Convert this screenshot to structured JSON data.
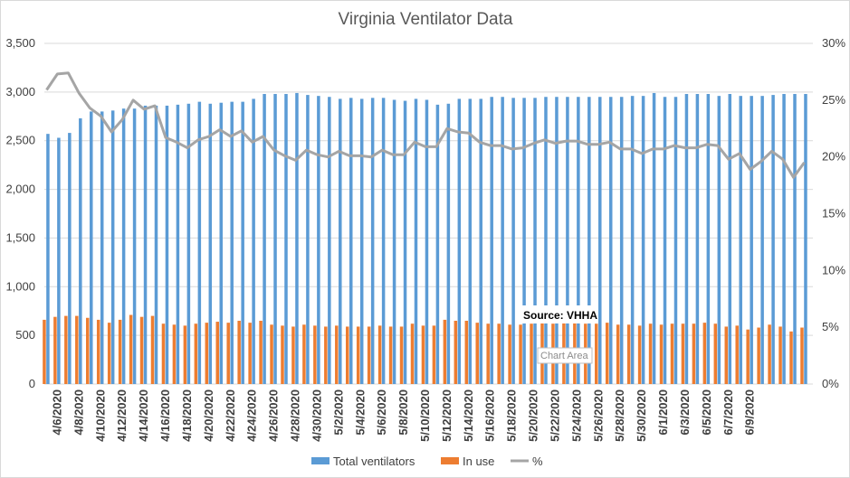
{
  "chart_data": {
    "type": "bar",
    "title": "Virginia Ventilator Data",
    "xlabel": "",
    "ylabel": "",
    "ylim": [
      0,
      3500
    ],
    "y2lim": [
      0,
      30
    ],
    "y_ticks": [
      "0",
      "500",
      "1,000",
      "1,500",
      "2,000",
      "2,500",
      "3,000",
      "3,500"
    ],
    "y2_ticks": [
      "0%",
      "5%",
      "10%",
      "15%",
      "20%",
      "25%",
      "30%"
    ],
    "x_tick_labels": [
      "4/6/2020",
      "4/8/2020",
      "4/10/2020",
      "4/12/2020",
      "4/14/2020",
      "4/16/2020",
      "4/18/2020",
      "4/20/2020",
      "4/22/2020",
      "4/24/2020",
      "4/26/2020",
      "4/28/2020",
      "4/30/2020",
      "5/2/2020",
      "5/4/2020",
      "5/6/2020",
      "5/8/2020",
      "5/10/2020",
      "5/12/2020",
      "5/14/2020",
      "5/16/2020",
      "5/18/2020",
      "5/20/2020",
      "5/22/2020",
      "5/24/2020",
      "5/26/2020",
      "5/28/2020",
      "5/30/2020",
      "6/1/2020",
      "6/3/2020",
      "6/5/2020",
      "6/7/2020",
      "6/9/2020"
    ],
    "grid": true,
    "legend_position": "bottom",
    "annotations": [
      "Source: VHHA"
    ],
    "tooltip": "Chart Area",
    "series": [
      {
        "name": "Total ventilators",
        "color": "#5b9bd5",
        "axis": "left",
        "values": [
          2570,
          2530,
          2580,
          2730,
          2800,
          2800,
          2810,
          2830,
          2830,
          2860,
          2860,
          2860,
          2870,
          2880,
          2900,
          2880,
          2890,
          2900,
          2900,
          2930,
          2980,
          2980,
          2980,
          2990,
          2970,
          2960,
          2950,
          2930,
          2940,
          2930,
          2940,
          2940,
          2920,
          2910,
          2930,
          2920,
          2870,
          2880,
          2930,
          2930,
          2930,
          2950,
          2950,
          2940,
          2940,
          2940,
          2950,
          2950,
          2950,
          2950,
          2950,
          2950,
          2950,
          2950,
          2960,
          2960,
          2990,
          2950,
          2950,
          2980,
          2980,
          2980,
          2960,
          2980,
          2960,
          2960,
          2960,
          2970,
          2980,
          2980,
          2980
        ]
      },
      {
        "name": "In use",
        "color": "#ed7d31",
        "axis": "left",
        "values": [
          660,
          690,
          700,
          700,
          680,
          660,
          630,
          660,
          710,
          690,
          700,
          620,
          610,
          600,
          620,
          630,
          640,
          630,
          650,
          630,
          650,
          610,
          600,
          590,
          610,
          600,
          590,
          600,
          590,
          590,
          590,
          600,
          590,
          590,
          620,
          600,
          600,
          660,
          650,
          650,
          630,
          620,
          620,
          610,
          610,
          620,
          630,
          620,
          630,
          630,
          620,
          620,
          630,
          610,
          610,
          600,
          620,
          610,
          620,
          620,
          620,
          630,
          620,
          590,
          600,
          560,
          580,
          610,
          590,
          540,
          580
        ]
      },
      {
        "name": "%",
        "color": "#a5a5a5",
        "axis": "right",
        "values": [
          25.9,
          27.3,
          27.4,
          25.6,
          24.3,
          23.6,
          22.2,
          23.3,
          25.0,
          24.2,
          24.5,
          21.7,
          21.3,
          20.8,
          21.5,
          21.8,
          22.4,
          21.8,
          22.3,
          21.3,
          21.8,
          20.6,
          20.1,
          19.7,
          20.6,
          20.2,
          20.0,
          20.5,
          20.1,
          20.1,
          20.0,
          20.6,
          20.2,
          20.2,
          21.3,
          20.9,
          20.9,
          22.5,
          22.2,
          22.1,
          21.3,
          21.0,
          21.0,
          20.7,
          20.8,
          21.2,
          21.5,
          21.2,
          21.4,
          21.4,
          21.1,
          21.1,
          21.3,
          20.7,
          20.7,
          20.3,
          20.7,
          20.7,
          21.0,
          20.8,
          20.8,
          21.1,
          21.0,
          19.8,
          20.3,
          18.9,
          19.6,
          20.5,
          19.8,
          18.2,
          19.5
        ]
      }
    ]
  }
}
